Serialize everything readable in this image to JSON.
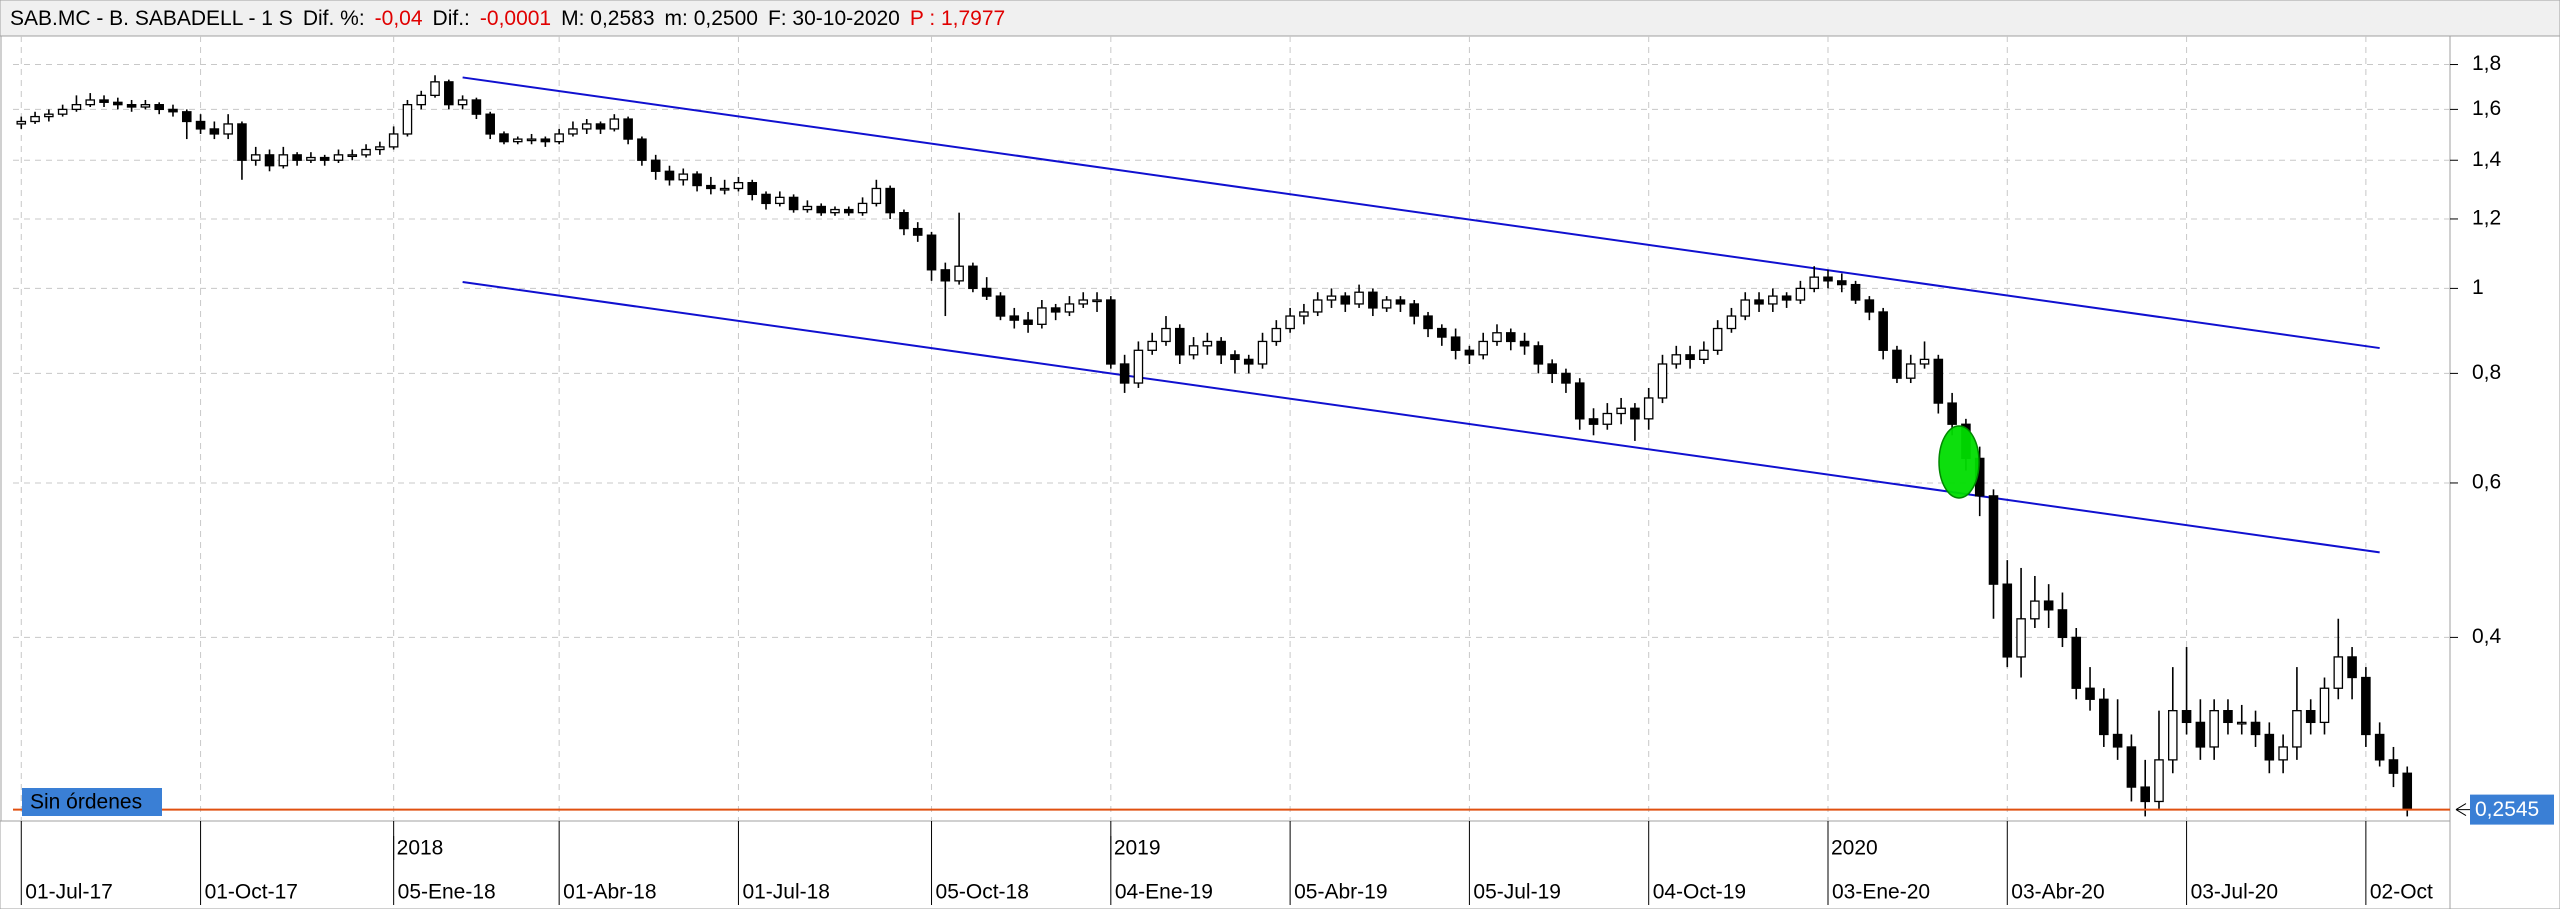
{
  "chart_data": {
    "type": "candlestick",
    "title_parts": [
      {
        "text": "SAB.MC - B. SABADELL -  1 S",
        "color": "#000000"
      },
      {
        "text": "Dif. %:",
        "color": "#000000"
      },
      {
        "text": "-0,04",
        "color": "#e00000"
      },
      {
        "text": "Dif.:",
        "color": "#000000"
      },
      {
        "text": "-0,0001",
        "color": "#e00000"
      },
      {
        "text": "M: 0,2583",
        "color": "#000000"
      },
      {
        "text": "m: 0,2500",
        "color": "#000000"
      },
      {
        "text": "F: 30-10-2020",
        "color": "#000000"
      },
      {
        "text": "P : 1,7977",
        "color": "#e00000"
      }
    ],
    "log_scale": true,
    "grid": true,
    "up_color": "#ffffff",
    "down_color": "#000000",
    "ylim": [
      0.247,
      1.94
    ],
    "yticks": [
      {
        "value": 0.4,
        "label": "0,4"
      },
      {
        "value": 0.6,
        "label": "0,6"
      },
      {
        "value": 0.8,
        "label": "0,8"
      },
      1,
      {
        "value": 1.2,
        "label": "1,2"
      },
      {
        "value": 1.4,
        "label": "1,4"
      },
      {
        "value": 1.6,
        "label": "1,6"
      },
      {
        "value": 1.8,
        "label": "1,8"
      }
    ],
    "xlim": [
      -0.6,
      176.1
    ],
    "xticks": [
      {
        "value": 0,
        "label": "01-Jul-17"
      },
      {
        "value": 13,
        "label": "01-Oct-17"
      },
      {
        "value": 27,
        "label": "05-Ene-18"
      },
      {
        "value": 39,
        "label": "01-Abr-18"
      },
      {
        "value": 52,
        "label": "01-Jul-18"
      },
      {
        "value": 66,
        "label": "05-Oct-18"
      },
      {
        "value": 79,
        "label": "04-Ene-19"
      },
      {
        "value": 92,
        "label": "05-Abr-19"
      },
      {
        "value": 105,
        "label": "05-Jul-19"
      },
      {
        "value": 118,
        "label": "04-Oct-19"
      },
      {
        "value": 131,
        "label": "03-Ene-20"
      },
      {
        "value": 144,
        "label": "03-Abr-20"
      },
      {
        "value": 157,
        "label": "03-Jul-20"
      },
      {
        "value": 170,
        "label": "02-Oct"
      }
    ],
    "year_ticks": [
      {
        "value": 27,
        "label": "2018"
      },
      {
        "value": 79,
        "label": "2019"
      },
      {
        "value": 131,
        "label": "2020"
      }
    ],
    "lines": [
      {
        "color": "#1010d0",
        "x": [
          32,
          171
        ],
        "y": [
          1.74,
          0.855
        ]
      },
      {
        "color": "#1010d0",
        "x": [
          32,
          171
        ],
        "y": [
          1.017,
          0.5
        ]
      }
    ],
    "hline": {
      "value": 0.2545,
      "label": "0,2545",
      "color": "#e05010"
    },
    "marker": {
      "x": 140.5,
      "y": 0.634,
      "color": "#00dd00"
    },
    "orders_label": "Sin órdenes",
    "ohlc": [
      [
        1.54,
        1.57,
        1.52,
        1.55
      ],
      [
        1.55,
        1.59,
        1.54,
        1.57
      ],
      [
        1.57,
        1.6,
        1.55,
        1.58
      ],
      [
        1.58,
        1.62,
        1.57,
        1.6
      ],
      [
        1.6,
        1.66,
        1.59,
        1.62
      ],
      [
        1.62,
        1.67,
        1.61,
        1.64
      ],
      [
        1.64,
        1.66,
        1.61,
        1.63
      ],
      [
        1.63,
        1.65,
        1.6,
        1.62
      ],
      [
        1.62,
        1.64,
        1.59,
        1.61
      ],
      [
        1.61,
        1.64,
        1.6,
        1.62
      ],
      [
        1.62,
        1.63,
        1.58,
        1.6
      ],
      [
        1.6,
        1.62,
        1.57,
        1.59
      ],
      [
        1.59,
        1.6,
        1.48,
        1.55
      ],
      [
        1.55,
        1.58,
        1.5,
        1.52
      ],
      [
        1.52,
        1.55,
        1.48,
        1.5
      ],
      [
        1.5,
        1.58,
        1.48,
        1.54
      ],
      [
        1.54,
        1.55,
        1.33,
        1.4
      ],
      [
        1.4,
        1.45,
        1.38,
        1.42
      ],
      [
        1.42,
        1.44,
        1.36,
        1.38
      ],
      [
        1.38,
        1.45,
        1.37,
        1.42
      ],
      [
        1.42,
        1.43,
        1.38,
        1.4
      ],
      [
        1.4,
        1.43,
        1.39,
        1.41
      ],
      [
        1.41,
        1.42,
        1.38,
        1.4
      ],
      [
        1.4,
        1.44,
        1.39,
        1.42
      ],
      [
        1.42,
        1.44,
        1.4,
        1.42
      ],
      [
        1.42,
        1.46,
        1.41,
        1.44
      ],
      [
        1.44,
        1.47,
        1.42,
        1.45
      ],
      [
        1.45,
        1.53,
        1.44,
        1.5
      ],
      [
        1.5,
        1.64,
        1.49,
        1.62
      ],
      [
        1.62,
        1.68,
        1.6,
        1.66
      ],
      [
        1.66,
        1.75,
        1.65,
        1.72
      ],
      [
        1.72,
        1.73,
        1.6,
        1.62
      ],
      [
        1.62,
        1.66,
        1.6,
        1.64
      ],
      [
        1.64,
        1.65,
        1.56,
        1.58
      ],
      [
        1.58,
        1.59,
        1.48,
        1.5
      ],
      [
        1.5,
        1.51,
        1.46,
        1.47
      ],
      [
        1.47,
        1.49,
        1.46,
        1.48
      ],
      [
        1.48,
        1.5,
        1.46,
        1.48
      ],
      [
        1.48,
        1.49,
        1.45,
        1.47
      ],
      [
        1.47,
        1.52,
        1.46,
        1.5
      ],
      [
        1.5,
        1.55,
        1.49,
        1.52
      ],
      [
        1.52,
        1.56,
        1.5,
        1.54
      ],
      [
        1.54,
        1.55,
        1.5,
        1.52
      ],
      [
        1.52,
        1.58,
        1.51,
        1.56
      ],
      [
        1.56,
        1.57,
        1.46,
        1.48
      ],
      [
        1.48,
        1.49,
        1.38,
        1.4
      ],
      [
        1.4,
        1.42,
        1.33,
        1.36
      ],
      [
        1.36,
        1.38,
        1.31,
        1.33
      ],
      [
        1.33,
        1.37,
        1.31,
        1.35
      ],
      [
        1.35,
        1.36,
        1.29,
        1.31
      ],
      [
        1.31,
        1.34,
        1.28,
        1.3
      ],
      [
        1.3,
        1.33,
        1.28,
        1.3
      ],
      [
        1.3,
        1.34,
        1.29,
        1.32
      ],
      [
        1.32,
        1.33,
        1.26,
        1.28
      ],
      [
        1.28,
        1.29,
        1.23,
        1.25
      ],
      [
        1.25,
        1.29,
        1.24,
        1.27
      ],
      [
        1.27,
        1.28,
        1.22,
        1.23
      ],
      [
        1.23,
        1.26,
        1.22,
        1.24
      ],
      [
        1.24,
        1.25,
        1.21,
        1.22
      ],
      [
        1.22,
        1.24,
        1.21,
        1.23
      ],
      [
        1.23,
        1.24,
        1.21,
        1.22
      ],
      [
        1.22,
        1.27,
        1.21,
        1.25
      ],
      [
        1.25,
        1.33,
        1.24,
        1.3
      ],
      [
        1.3,
        1.31,
        1.2,
        1.22
      ],
      [
        1.22,
        1.23,
        1.15,
        1.17
      ],
      [
        1.17,
        1.19,
        1.13,
        1.15
      ],
      [
        1.15,
        1.16,
        1.02,
        1.05
      ],
      [
        1.05,
        1.07,
        0.93,
        1.02
      ],
      [
        1.02,
        1.22,
        1.01,
        1.06
      ],
      [
        1.06,
        1.07,
        0.99,
        1.0
      ],
      [
        1.0,
        1.03,
        0.97,
        0.98
      ],
      [
        0.98,
        0.99,
        0.92,
        0.93
      ],
      [
        0.93,
        0.95,
        0.9,
        0.92
      ],
      [
        0.92,
        0.94,
        0.89,
        0.91
      ],
      [
        0.91,
        0.97,
        0.9,
        0.95
      ],
      [
        0.95,
        0.96,
        0.92,
        0.94
      ],
      [
        0.94,
        0.98,
        0.93,
        0.96
      ],
      [
        0.96,
        0.99,
        0.95,
        0.97
      ],
      [
        0.97,
        0.99,
        0.94,
        0.97
      ],
      [
        0.97,
        0.98,
        0.81,
        0.82
      ],
      [
        0.82,
        0.84,
        0.76,
        0.78
      ],
      [
        0.78,
        0.87,
        0.77,
        0.85
      ],
      [
        0.85,
        0.89,
        0.84,
        0.87
      ],
      [
        0.87,
        0.93,
        0.86,
        0.9
      ],
      [
        0.9,
        0.91,
        0.82,
        0.84
      ],
      [
        0.84,
        0.88,
        0.83,
        0.86
      ],
      [
        0.86,
        0.89,
        0.84,
        0.87
      ],
      [
        0.87,
        0.88,
        0.82,
        0.84
      ],
      [
        0.84,
        0.85,
        0.8,
        0.83
      ],
      [
        0.83,
        0.84,
        0.8,
        0.82
      ],
      [
        0.82,
        0.89,
        0.81,
        0.87
      ],
      [
        0.87,
        0.92,
        0.86,
        0.9
      ],
      [
        0.9,
        0.95,
        0.89,
        0.93
      ],
      [
        0.93,
        0.96,
        0.91,
        0.94
      ],
      [
        0.94,
        0.99,
        0.93,
        0.97
      ],
      [
        0.97,
        1.0,
        0.95,
        0.98
      ],
      [
        0.98,
        0.99,
        0.94,
        0.96
      ],
      [
        0.96,
        1.01,
        0.95,
        0.99
      ],
      [
        0.99,
        1.0,
        0.93,
        0.95
      ],
      [
        0.95,
        0.98,
        0.94,
        0.97
      ],
      [
        0.97,
        0.98,
        0.94,
        0.96
      ],
      [
        0.96,
        0.97,
        0.91,
        0.93
      ],
      [
        0.93,
        0.94,
        0.88,
        0.9
      ],
      [
        0.9,
        0.91,
        0.86,
        0.88
      ],
      [
        0.88,
        0.9,
        0.83,
        0.85
      ],
      [
        0.85,
        0.86,
        0.82,
        0.84
      ],
      [
        0.84,
        0.89,
        0.83,
        0.87
      ],
      [
        0.87,
        0.91,
        0.86,
        0.89
      ],
      [
        0.89,
        0.9,
        0.85,
        0.87
      ],
      [
        0.87,
        0.89,
        0.84,
        0.86
      ],
      [
        0.86,
        0.87,
        0.8,
        0.82
      ],
      [
        0.82,
        0.83,
        0.78,
        0.8
      ],
      [
        0.8,
        0.81,
        0.76,
        0.78
      ],
      [
        0.78,
        0.79,
        0.69,
        0.71
      ],
      [
        0.71,
        0.73,
        0.68,
        0.7
      ],
      [
        0.7,
        0.74,
        0.69,
        0.72
      ],
      [
        0.72,
        0.75,
        0.7,
        0.73
      ],
      [
        0.73,
        0.74,
        0.67,
        0.71
      ],
      [
        0.71,
        0.77,
        0.69,
        0.75
      ],
      [
        0.75,
        0.84,
        0.74,
        0.82
      ],
      [
        0.82,
        0.86,
        0.81,
        0.84
      ],
      [
        0.84,
        0.86,
        0.81,
        0.83
      ],
      [
        0.83,
        0.87,
        0.82,
        0.85
      ],
      [
        0.85,
        0.92,
        0.84,
        0.9
      ],
      [
        0.9,
        0.95,
        0.89,
        0.93
      ],
      [
        0.93,
        0.99,
        0.92,
        0.97
      ],
      [
        0.97,
        0.99,
        0.94,
        0.96
      ],
      [
        0.96,
        1.0,
        0.94,
        0.98
      ],
      [
        0.98,
        0.99,
        0.95,
        0.97
      ],
      [
        0.97,
        1.02,
        0.96,
        1.0
      ],
      [
        1.0,
        1.06,
        0.99,
        1.03
      ],
      [
        1.03,
        1.05,
        1.0,
        1.02
      ],
      [
        1.02,
        1.04,
        0.99,
        1.01
      ],
      [
        1.01,
        1.02,
        0.96,
        0.97
      ],
      [
        0.97,
        0.98,
        0.92,
        0.94
      ],
      [
        0.94,
        0.95,
        0.83,
        0.85
      ],
      [
        0.85,
        0.86,
        0.78,
        0.79
      ],
      [
        0.79,
        0.84,
        0.78,
        0.82
      ],
      [
        0.82,
        0.87,
        0.81,
        0.83
      ],
      [
        0.83,
        0.84,
        0.72,
        0.74
      ],
      [
        0.74,
        0.76,
        0.68,
        0.7
      ],
      [
        0.7,
        0.71,
        0.62,
        0.64
      ],
      [
        0.64,
        0.66,
        0.55,
        0.58
      ],
      [
        0.58,
        0.59,
        0.42,
        0.46
      ],
      [
        0.46,
        0.49,
        0.37,
        0.38
      ],
      [
        0.38,
        0.48,
        0.36,
        0.42
      ],
      [
        0.42,
        0.47,
        0.41,
        0.44
      ],
      [
        0.44,
        0.46,
        0.41,
        0.43
      ],
      [
        0.43,
        0.45,
        0.39,
        0.4
      ],
      [
        0.4,
        0.41,
        0.34,
        0.35
      ],
      [
        0.35,
        0.37,
        0.33,
        0.34
      ],
      [
        0.34,
        0.35,
        0.3,
        0.31
      ],
      [
        0.31,
        0.34,
        0.29,
        0.3
      ],
      [
        0.3,
        0.31,
        0.26,
        0.27
      ],
      [
        0.27,
        0.29,
        0.25,
        0.26
      ],
      [
        0.26,
        0.33,
        0.255,
        0.29
      ],
      [
        0.29,
        0.37,
        0.28,
        0.33
      ],
      [
        0.33,
        0.39,
        0.31,
        0.32
      ],
      [
        0.32,
        0.34,
        0.29,
        0.3
      ],
      [
        0.3,
        0.34,
        0.29,
        0.33
      ],
      [
        0.33,
        0.34,
        0.31,
        0.32
      ],
      [
        0.32,
        0.335,
        0.31,
        0.32
      ],
      [
        0.32,
        0.33,
        0.3,
        0.31
      ],
      [
        0.31,
        0.32,
        0.28,
        0.29
      ],
      [
        0.29,
        0.31,
        0.28,
        0.3
      ],
      [
        0.3,
        0.37,
        0.29,
        0.33
      ],
      [
        0.33,
        0.34,
        0.31,
        0.32
      ],
      [
        0.32,
        0.36,
        0.31,
        0.35
      ],
      [
        0.35,
        0.42,
        0.34,
        0.38
      ],
      [
        0.38,
        0.39,
        0.34,
        0.36
      ],
      [
        0.36,
        0.37,
        0.3,
        0.31
      ],
      [
        0.31,
        0.32,
        0.285,
        0.29
      ],
      [
        0.29,
        0.3,
        0.27,
        0.28
      ],
      [
        0.28,
        0.285,
        0.25,
        0.2545
      ]
    ]
  }
}
